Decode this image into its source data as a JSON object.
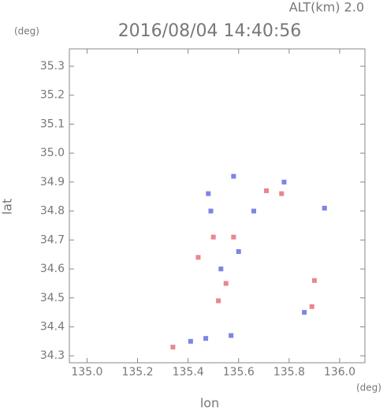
{
  "chart_data": {
    "type": "scatter",
    "title": "2016/08/04 14:40:56",
    "annotation": "ALT(km) 2.0",
    "xlabel": "lon",
    "ylabel": "lat",
    "xunit": "(deg)",
    "yunit": "(deg)",
    "xlim": [
      134.93,
      136.1
    ],
    "ylim": [
      34.276,
      35.36
    ],
    "xticks": [
      {
        "value": 135,
        "label": "135.0"
      },
      135.2,
      135.4,
      135.6,
      135.8,
      {
        "value": 136,
        "label": "136.0"
      }
    ],
    "yticks": [
      34.3,
      34.4,
      34.5,
      34.6,
      34.7,
      34.8,
      34.9,
      {
        "value": 35,
        "label": "35.0"
      },
      35.1,
      35.2,
      35.3
    ],
    "series": [
      {
        "color": "#e8707a",
        "x": [
          135.34,
          135.44,
          135.5,
          135.55,
          135.52,
          135.58,
          135.71,
          135.77,
          135.9,
          135.89
        ],
        "values": [
          34.33,
          34.64,
          34.71,
          34.55,
          34.49,
          34.71,
          34.87,
          34.86,
          34.56,
          34.47
        ]
      },
      {
        "color": "#6670e0",
        "x": [
          135.41,
          135.47,
          135.57,
          135.53,
          135.6,
          135.49,
          135.48,
          135.58,
          135.66,
          135.78,
          135.94,
          135.86
        ],
        "values": [
          34.35,
          34.36,
          34.37,
          34.6,
          34.66,
          34.8,
          34.86,
          34.92,
          34.8,
          34.9,
          34.81,
          34.45
        ]
      }
    ]
  }
}
